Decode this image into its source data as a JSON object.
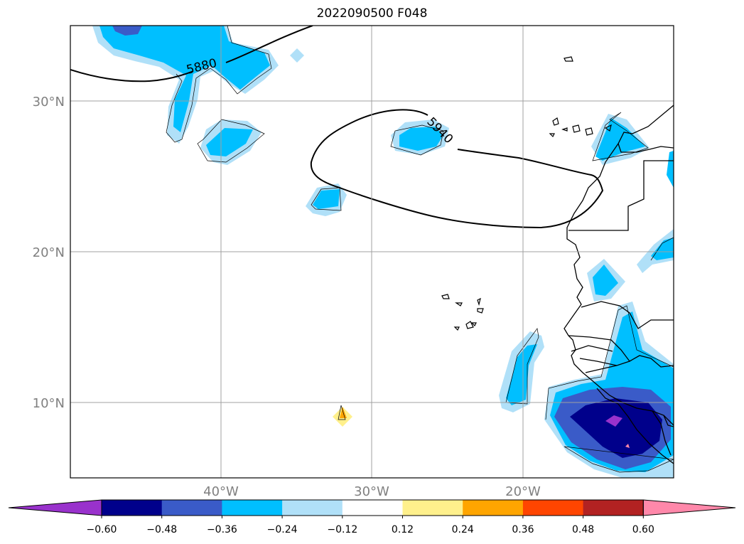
{
  "title": "2022090500 F048",
  "map": {
    "lat_labels": [
      "30°N",
      "20°N",
      "10°N"
    ],
    "lon_labels": [
      "40°W",
      "30°W",
      "20°W"
    ],
    "contour_labels": [
      "5880",
      "5940"
    ]
  },
  "colorbar": {
    "ticks": [
      "−0.60",
      "−0.48",
      "−0.36",
      "−0.24",
      "−0.12",
      "0.12",
      "0.24",
      "0.36",
      "0.48",
      "0.60"
    ],
    "colors": {
      "under": "#9932cc",
      "bins": [
        "#00008b",
        "#3a5bc8",
        "#00bfff",
        "#b0e0f8",
        "#ffffff",
        "#fff08c",
        "#ffa500",
        "#ff4500",
        "#b22222"
      ],
      "over": "#ff88aa"
    }
  }
}
